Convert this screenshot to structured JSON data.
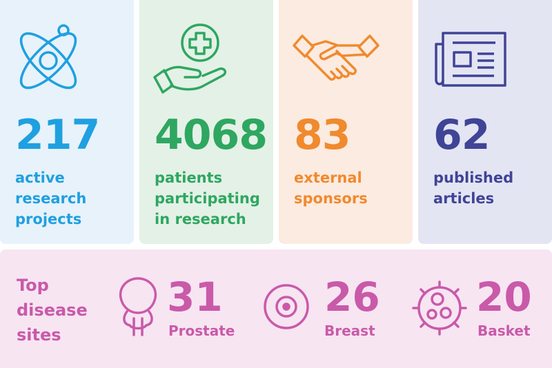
{
  "stats": [
    {
      "value": "217",
      "label_lines": [
        "active",
        "research",
        "projects"
      ],
      "icon": "atom-icon",
      "color": "#1fa0e0"
    },
    {
      "value": "4068",
      "label_lines": [
        "patients",
        "participating",
        "in research"
      ],
      "icon": "hand-medical-cross-icon",
      "color": "#2ea760"
    },
    {
      "value": "83",
      "label_lines": [
        "external",
        "sponsors"
      ],
      "icon": "handshake-icon",
      "color": "#f08a2e"
    },
    {
      "value": "62",
      "label_lines": [
        "published",
        "articles"
      ],
      "icon": "newspaper-icon",
      "color": "#3f4496"
    }
  ],
  "disease_sites": {
    "title": "Top\ndisease\nsites",
    "color": "#c95aa9",
    "sites": [
      {
        "value": "31",
        "label": "Prostate",
        "icon": "prostate-icon"
      },
      {
        "value": "26",
        "label": "Breast",
        "icon": "breast-icon"
      },
      {
        "value": "20",
        "label": "Basket",
        "icon": "cell-icon"
      }
    ]
  }
}
